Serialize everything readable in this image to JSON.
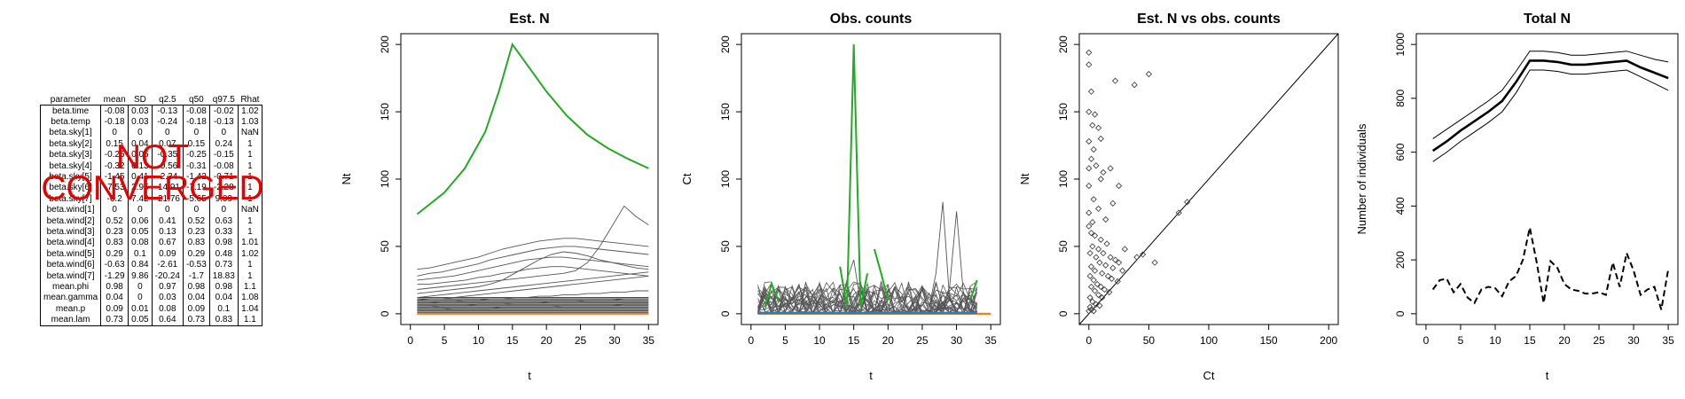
{
  "stats_table": {
    "headers": [
      "parameter",
      "mean",
      "SD",
      "q2.5",
      "q50",
      "q97.5",
      "Rhat"
    ],
    "rows": [
      [
        "beta.time",
        "-0.08",
        "0.03",
        "-0.13",
        "-0.08",
        "-0.02",
        "1.02"
      ],
      [
        "beta.temp",
        "-0.18",
        "0.03",
        "-0.24",
        "-0.18",
        "-0.13",
        "1.03"
      ],
      [
        "beta.sky[1]",
        "0",
        "0",
        "0",
        "0",
        "0",
        "NaN"
      ],
      [
        "beta.sky[2]",
        "0.15",
        "0.04",
        "0.07",
        "0.15",
        "0.24",
        "1"
      ],
      [
        "beta.sky[3]",
        "-0.25",
        "0.05",
        "-0.35",
        "-0.25",
        "-0.15",
        "1"
      ],
      [
        "beta.sky[4]",
        "-0.32",
        "0.13",
        "-0.56",
        "-0.31",
        "-0.08",
        "1"
      ],
      [
        "beta.sky[5]",
        "-1.45",
        "0.41",
        "-2.34",
        "-1.42",
        "-0.71",
        "1"
      ],
      [
        "beta.sky[6]",
        "-7.53",
        "2.95",
        "-14.91",
        "-7.19",
        "-2.28",
        "1"
      ],
      [
        "beta.sky[7]",
        "-6.2",
        "7.42",
        "-21.76",
        "-5.65",
        "9.09",
        "1"
      ],
      [
        "beta.wind[1]",
        "0",
        "0",
        "0",
        "0",
        "0",
        "NaN"
      ],
      [
        "beta.wind[2]",
        "0.52",
        "0.06",
        "0.41",
        "0.52",
        "0.63",
        "1"
      ],
      [
        "beta.wind[3]",
        "0.23",
        "0.05",
        "0.13",
        "0.23",
        "0.33",
        "1"
      ],
      [
        "beta.wind[4]",
        "0.83",
        "0.08",
        "0.67",
        "0.83",
        "0.98",
        "1.01"
      ],
      [
        "beta.wind[5]",
        "0.29",
        "0.1",
        "0.09",
        "0.29",
        "0.48",
        "1.02"
      ],
      [
        "beta.wind[6]",
        "-0.63",
        "0.84",
        "-2.61",
        "-0.53",
        "0.73",
        "1"
      ],
      [
        "beta.wind[7]",
        "-1.29",
        "9.86",
        "-20.24",
        "-1.7",
        "18.83",
        "1"
      ],
      [
        "mean.phi",
        "0.98",
        "0",
        "0.97",
        "0.98",
        "0.98",
        "1.1"
      ],
      [
        "mean.gamma",
        "0.04",
        "0",
        "0.03",
        "0.04",
        "0.04",
        "1.08"
      ],
      [
        "mean.p",
        "0.09",
        "0.01",
        "0.08",
        "0.09",
        "0.1",
        "1.04"
      ],
      [
        "mean.lam",
        "0.73",
        "0.05",
        "0.64",
        "0.73",
        "0.83",
        "1.1"
      ]
    ]
  },
  "stamp": {
    "line1": "NOT",
    "line2": "CONVERGED",
    "color": "#e60000"
  },
  "colors": {
    "highlight": "#22aa22",
    "orange": "#f08020",
    "blue": "#2080c8",
    "lines": "#555555"
  },
  "chart_data": [
    {
      "type": "line",
      "title": "Est. N",
      "xlabel": "t",
      "ylabel": "Nt",
      "xlim": [
        0,
        35
      ],
      "ylim": [
        0,
        200
      ],
      "xticks": [
        0,
        5,
        10,
        15,
        20,
        25,
        30,
        35
      ],
      "yticks": [
        0,
        50,
        100,
        150,
        200
      ],
      "highlight_series": {
        "x": [
          1,
          5,
          8,
          11,
          13,
          15,
          17,
          20,
          23,
          26,
          29,
          32,
          35
        ],
        "y": [
          74,
          90,
          108,
          135,
          165,
          200,
          186,
          165,
          147,
          133,
          123,
          115,
          108
        ]
      },
      "background_series": [
        [
          33,
          34,
          36,
          38,
          40,
          42,
          45,
          48,
          50,
          52,
          54,
          55,
          56,
          56,
          55,
          54,
          53,
          52,
          51,
          50
        ],
        [
          28,
          30,
          31,
          33,
          35,
          37,
          40,
          42,
          44,
          46,
          48,
          49,
          50,
          50,
          49,
          48,
          47,
          46,
          45,
          44
        ],
        [
          25,
          26,
          27,
          28,
          30,
          32,
          34,
          36,
          38,
          40,
          41,
          42,
          42,
          41,
          40,
          39,
          38,
          37,
          36,
          35
        ],
        [
          22,
          22,
          23,
          24,
          25,
          27,
          28,
          30,
          31,
          33,
          34,
          35,
          35,
          34,
          33,
          32,
          31,
          30,
          29,
          28
        ],
        [
          18,
          19,
          20,
          21,
          22,
          23,
          24,
          25,
          26,
          27,
          28,
          29,
          30,
          32,
          38,
          50,
          65,
          80,
          72,
          66
        ],
        [
          15,
          16,
          17,
          18,
          19,
          20,
          22,
          25,
          30,
          35,
          40,
          44,
          46,
          45,
          43,
          40,
          38,
          36,
          34,
          33
        ],
        [
          12,
          13,
          14,
          15,
          16,
          17,
          18,
          19,
          20,
          21,
          22,
          23,
          24,
          25,
          26,
          27,
          28,
          29,
          30,
          31
        ],
        [
          10,
          11,
          11,
          12,
          13,
          14,
          15,
          16,
          17,
          18,
          19,
          20,
          21,
          22,
          23,
          24,
          25,
          26,
          27,
          28
        ],
        [
          8,
          8,
          9,
          9,
          10,
          10,
          11,
          11,
          12,
          12,
          13,
          13,
          14,
          14,
          15,
          15,
          16,
          16,
          17,
          17
        ],
        [
          5,
          5,
          6,
          6,
          6,
          7,
          7,
          7,
          8,
          8,
          8,
          9,
          9,
          9,
          10,
          10,
          10,
          11,
          11,
          11
        ],
        [
          3,
          3,
          3,
          4,
          4,
          4,
          4,
          5,
          5,
          5,
          5,
          5,
          6,
          6,
          6,
          6,
          6,
          7,
          7,
          7
        ]
      ],
      "flat_levels": [
        0,
        1,
        2,
        3,
        4,
        5,
        6,
        7,
        8,
        9,
        10,
        11,
        12
      ],
      "baseline_orange": 0
    },
    {
      "type": "line",
      "title": "Obs. counts",
      "xlabel": "t",
      "ylabel": "Ct",
      "xlim": [
        0,
        35
      ],
      "ylim": [
        0,
        200
      ],
      "xticks": [
        0,
        5,
        10,
        15,
        20,
        25,
        30,
        35
      ],
      "yticks": [
        0,
        50,
        100,
        150,
        200
      ],
      "highlight_segments": [
        {
          "x": [
            2,
            3,
            4
          ],
          "y": [
            5,
            22,
            10
          ]
        },
        {
          "x": [
            13,
            14,
            15,
            16,
            17
          ],
          "y": [
            35,
            5,
            200,
            5,
            30
          ]
        },
        {
          "x": [
            18,
            19,
            20
          ],
          "y": [
            48,
            30,
            10
          ]
        },
        {
          "x": [
            32,
            33
          ],
          "y": [
            10,
            25
          ]
        }
      ],
      "spike_series": [
        {
          "x": [
            26,
            27,
            28,
            29,
            30
          ],
          "y": [
            5,
            30,
            83,
            10,
            4
          ]
        },
        {
          "x": [
            28,
            29,
            30,
            31,
            32
          ],
          "y": [
            6,
            20,
            76,
            15,
            5
          ]
        },
        {
          "x": [
            13,
            14,
            15,
            16
          ],
          "y": [
            5,
            25,
            40,
            8
          ]
        }
      ],
      "noise_max": 24,
      "baseline_blue": 0,
      "baseline_orange": 0
    },
    {
      "type": "scatter",
      "title": "Est. N vs obs. counts",
      "xlabel": "Ct",
      "ylabel": "Nt",
      "xlim": [
        0,
        200
      ],
      "ylim": [
        0,
        200
      ],
      "xticks": [
        0,
        50,
        100,
        150,
        200
      ],
      "yticks": [
        0,
        50,
        100,
        150,
        200
      ],
      "identity_line": true,
      "points": [
        [
          0,
          194
        ],
        [
          0,
          185
        ],
        [
          2,
          165
        ],
        [
          0,
          150
        ],
        [
          5,
          148
        ],
        [
          3,
          140
        ],
        [
          8,
          138
        ],
        [
          0,
          128
        ],
        [
          10,
          130
        ],
        [
          4,
          122
        ],
        [
          2,
          115
        ],
        [
          0,
          108
        ],
        [
          6,
          110
        ],
        [
          12,
          105
        ],
        [
          22,
          173
        ],
        [
          38,
          170
        ],
        [
          50,
          178
        ],
        [
          18,
          108
        ],
        [
          10,
          100
        ],
        [
          25,
          95
        ],
        [
          0,
          95
        ],
        [
          4,
          85
        ],
        [
          20,
          82
        ],
        [
          8,
          78
        ],
        [
          0,
          75
        ],
        [
          14,
          70
        ],
        [
          30,
          48
        ],
        [
          40,
          42
        ],
        [
          45,
          44
        ],
        [
          55,
          38
        ],
        [
          75,
          75
        ],
        [
          82,
          83
        ],
        [
          2,
          60
        ],
        [
          5,
          58
        ],
        [
          10,
          55
        ],
        [
          15,
          52
        ],
        [
          3,
          50
        ],
        [
          8,
          48
        ],
        [
          12,
          45
        ],
        [
          18,
          42
        ],
        [
          22,
          40
        ],
        [
          25,
          38
        ],
        [
          1,
          45
        ],
        [
          6,
          42
        ],
        [
          9,
          38
        ],
        [
          14,
          36
        ],
        [
          20,
          34
        ],
        [
          28,
          32
        ],
        [
          2,
          35
        ],
        [
          5,
          32
        ],
        [
          11,
          30
        ],
        [
          16,
          28
        ],
        [
          19,
          26
        ],
        [
          24,
          24
        ],
        [
          1,
          28
        ],
        [
          4,
          25
        ],
        [
          7,
          22
        ],
        [
          10,
          20
        ],
        [
          13,
          18
        ],
        [
          17,
          16
        ],
        [
          2,
          20
        ],
        [
          5,
          17
        ],
        [
          8,
          14
        ],
        [
          11,
          12
        ],
        [
          1,
          12
        ],
        [
          3,
          9
        ],
        [
          6,
          7
        ],
        [
          9,
          6
        ],
        [
          1,
          5
        ],
        [
          2,
          3
        ],
        [
          0,
          2
        ],
        [
          4,
          2
        ],
        [
          0,
          65
        ],
        [
          3,
          68
        ]
      ]
    },
    {
      "type": "line",
      "title": "Total N",
      "xlabel": "t",
      "ylabel": "Number of individuals",
      "xlim": [
        0,
        35
      ],
      "ylim": [
        0,
        1000
      ],
      "xticks": [
        0,
        5,
        10,
        15,
        20,
        25,
        30,
        35
      ],
      "yticks": [
        0,
        200,
        400,
        600,
        800,
        1000
      ],
      "series": [
        {
          "name": "",
          "style": "solid-bold",
          "x": [
            1,
            3,
            5,
            7,
            9,
            11,
            13,
            15,
            17,
            19,
            21,
            23,
            25,
            27,
            29,
            31,
            33,
            35
          ],
          "y": [
            605,
            640,
            680,
            715,
            750,
            790,
            860,
            940,
            940,
            935,
            925,
            925,
            930,
            935,
            940,
            915,
            895,
            875
          ]
        },
        {
          "name": "",
          "style": "solid-thin",
          "x": [
            1,
            3,
            5,
            7,
            9,
            11,
            13,
            15,
            17,
            19,
            21,
            23,
            25,
            27,
            29,
            31,
            33,
            35
          ],
          "y": [
            650,
            685,
            720,
            755,
            790,
            830,
            900,
            975,
            975,
            970,
            960,
            960,
            965,
            970,
            975,
            960,
            945,
            935
          ]
        },
        {
          "name": "",
          "style": "solid-thin",
          "x": [
            1,
            3,
            5,
            7,
            9,
            11,
            13,
            15,
            17,
            19,
            21,
            23,
            25,
            27,
            29,
            31,
            33,
            35
          ],
          "y": [
            565,
            600,
            640,
            675,
            710,
            750,
            820,
            905,
            905,
            900,
            890,
            890,
            895,
            900,
            905,
            880,
            855,
            830
          ]
        },
        {
          "name": "",
          "style": "dashed",
          "x": [
            1,
            2,
            3,
            4,
            5,
            6,
            7,
            8,
            9,
            10,
            11,
            12,
            13,
            14,
            15,
            16,
            17,
            18,
            19,
            20,
            21,
            22,
            23,
            24,
            25,
            26,
            27,
            28,
            29,
            30,
            31,
            32,
            33,
            34,
            35
          ],
          "y": [
            90,
            125,
            130,
            80,
            110,
            60,
            40,
            90,
            100,
            95,
            65,
            120,
            140,
            200,
            320,
            190,
            40,
            195,
            170,
            110,
            90,
            85,
            75,
            75,
            80,
            70,
            190,
            100,
            225,
            160,
            70,
            90,
            100,
            15,
            165
          ]
        }
      ]
    }
  ]
}
